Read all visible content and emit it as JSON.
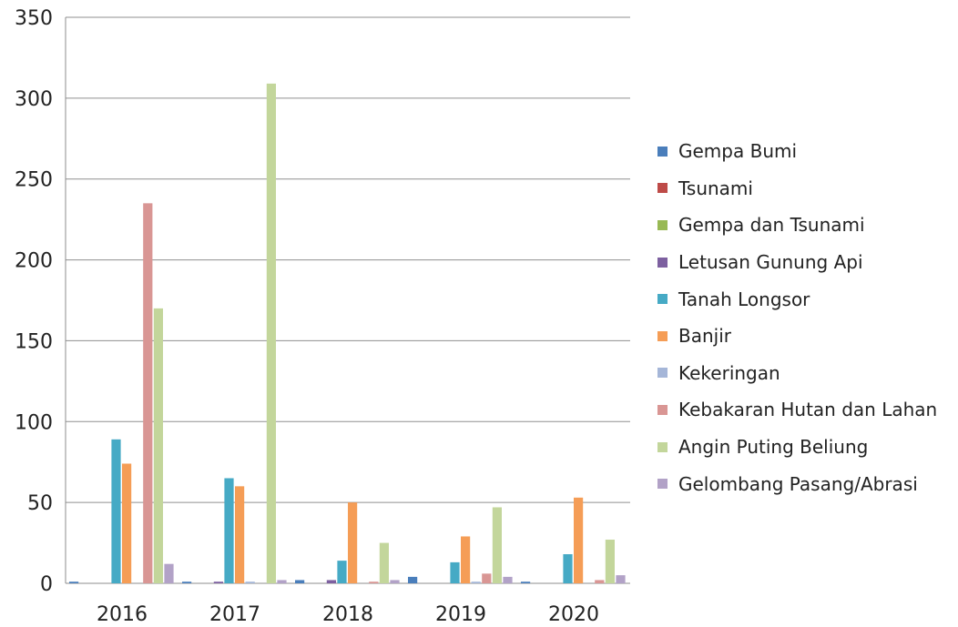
{
  "chart_data": {
    "type": "bar",
    "categories": [
      "2016",
      "2017",
      "2018",
      "2019",
      "2020"
    ],
    "ylim": [
      0,
      350
    ],
    "yticks": [
      0,
      50,
      100,
      150,
      200,
      250,
      300,
      350
    ],
    "grid": true,
    "legend_position": "right",
    "series": [
      {
        "name": "Gempa Bumi",
        "color": "#4a7ebb",
        "values": [
          1,
          1,
          2,
          4,
          1
        ]
      },
      {
        "name": "Tsunami",
        "color": "#be4b48",
        "values": [
          0,
          0,
          0,
          0,
          0
        ]
      },
      {
        "name": "Gempa dan Tsunami",
        "color": "#98b954",
        "values": [
          0,
          0,
          0,
          0,
          0
        ]
      },
      {
        "name": "Letusan Gunung Api",
        "color": "#7d60a0",
        "values": [
          0,
          1,
          2,
          0,
          0
        ]
      },
      {
        "name": "Tanah Longsor",
        "color": "#46aac5",
        "values": [
          89,
          65,
          14,
          13,
          18
        ]
      },
      {
        "name": "Banjir",
        "color": "#f59d56",
        "values": [
          74,
          60,
          50,
          29,
          53
        ]
      },
      {
        "name": "Kekeringan",
        "color": "#a5b6d8",
        "values": [
          0,
          1,
          0,
          1,
          0
        ]
      },
      {
        "name": "Kebakaran Hutan dan Lahan",
        "color": "#d99694",
        "values": [
          235,
          0,
          1,
          6,
          2
        ]
      },
      {
        "name": "Angin Puting Beliung",
        "color": "#c3d69b",
        "values": [
          170,
          309,
          25,
          47,
          27
        ]
      },
      {
        "name": "Gelombang Pasang/Abrasi",
        "color": "#b2a2c7",
        "values": [
          12,
          2,
          2,
          4,
          5
        ]
      }
    ]
  }
}
